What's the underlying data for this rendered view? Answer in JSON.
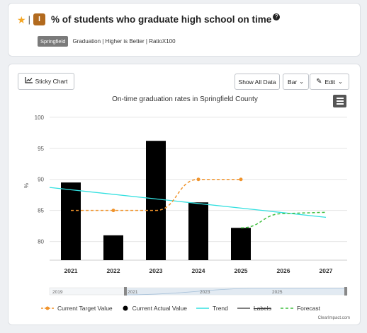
{
  "header": {
    "title": "% of students who graduate high school on time",
    "help_icon_glyph": "?",
    "indicator_icon_letter": "I",
    "badge": "Springfield",
    "meta": "Graduation | Higher is Better | RatioX100",
    "star_color": "#f5a623",
    "indicator_color": "#b26a1e"
  },
  "toolbar": {
    "sticky_label": "Sticky Chart",
    "show_all_label": "Show All Data",
    "chart_type_label": "Bar",
    "edit_label": "Edit"
  },
  "chart_data": {
    "type": "bar",
    "title": "On-time graduation rates in Springfield County",
    "ylabel": "%",
    "ylim": [
      77,
      101
    ],
    "yticks": [
      80,
      85,
      90,
      95,
      100
    ],
    "categories": [
      "2021",
      "2022",
      "2023",
      "2024",
      "2025",
      "2026",
      "2027"
    ],
    "actual": [
      89.5,
      81,
      96.2,
      86.3,
      82.2,
      null,
      null
    ],
    "target": [
      85,
      85,
      85,
      90,
      90,
      null,
      null
    ],
    "target_points_shown": [
      false,
      true,
      false,
      true,
      true,
      false,
      false
    ],
    "trend": {
      "start": 88.7,
      "end": 83.9
    },
    "forecast": {
      "start": 82.2,
      "mid": 84.5,
      "end": 84.7
    },
    "navigator_labels": [
      "2019",
      "2021",
      "2023",
      "2025"
    ],
    "colors": {
      "actual": "#000000",
      "target": "#f0932b",
      "trend": "#33e0e0",
      "forecast": "#3fbf3f",
      "labels": "#555555"
    }
  },
  "legend": {
    "target": "Current Target Value",
    "actual": "Current Actual Value",
    "trend": "Trend",
    "labels": "Labels",
    "forecast": "Forecast"
  },
  "credit": "ClearImpact.com"
}
